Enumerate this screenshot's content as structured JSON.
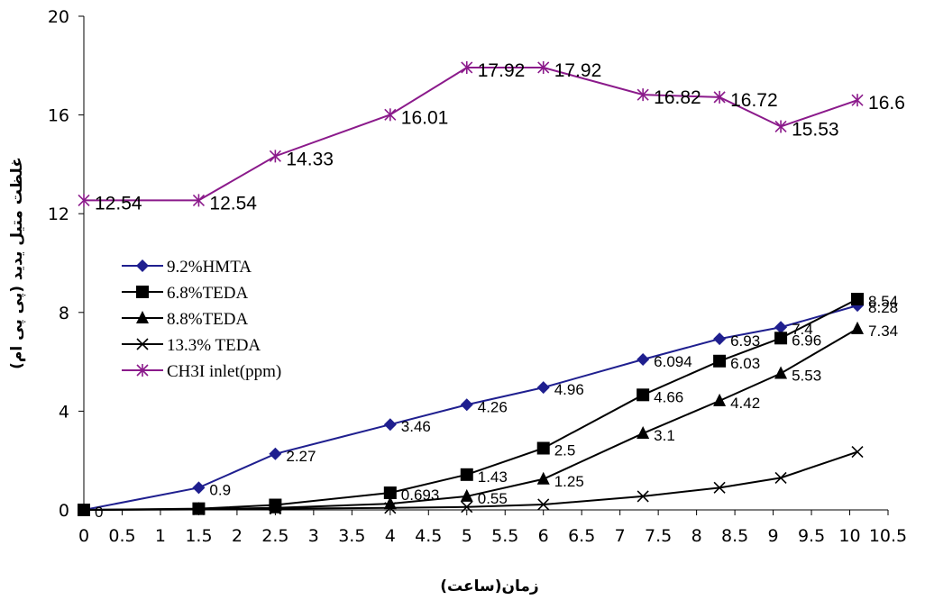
{
  "chart_data": {
    "type": "line",
    "title": "",
    "xlabel": "زمان(ساعت)",
    "ylabel": "غلظت متیل یدید (پی پی ام)",
    "xlim": [
      0,
      10.5
    ],
    "ylim": [
      0,
      20
    ],
    "x_ticks": [
      "0",
      "0.5",
      "1",
      "1.5",
      "2",
      "2.5",
      "3",
      "3.5",
      "4",
      "4.5",
      "5",
      "5.5",
      "6",
      "6.5",
      "7",
      "7.5",
      "8",
      "8.5",
      "9",
      "9.5",
      "10",
      "10.5"
    ],
    "y_ticks": [
      "0",
      "4",
      "8",
      "12",
      "16",
      "20"
    ],
    "grid": false,
    "legend_position": "left",
    "series": [
      {
        "name": "9.2%HMTA",
        "color": "#1f1f8f",
        "marker": "diamond",
        "x": [
          0,
          1.5,
          2.5,
          4,
          5,
          6,
          7.3,
          8.3,
          9.1,
          10.1
        ],
        "y": [
          0,
          0.9,
          2.27,
          3.46,
          4.26,
          4.96,
          6.094,
          6.93,
          7.4,
          8.28
        ],
        "labels": [
          "0",
          "0.9",
          "2.27",
          "3.46",
          "4.26",
          "4.96",
          "6.094",
          "6.93",
          "7.4",
          "8.28"
        ]
      },
      {
        "name": "6.8%TEDA",
        "color": "#000000",
        "marker": "square",
        "x": [
          0,
          1.5,
          2.5,
          4,
          5,
          6,
          7.3,
          8.3,
          9.1,
          10.1
        ],
        "y": [
          0,
          0.05,
          0.2,
          0.693,
          1.43,
          2.5,
          4.66,
          6.03,
          6.96,
          8.54
        ],
        "labels": [
          "",
          "",
          "",
          "0.693",
          "1.43",
          "2.5",
          "4.66",
          "6.03",
          "6.96",
          "8.54"
        ]
      },
      {
        "name": "8.8%TEDA",
        "color": "#000000",
        "marker": "triangle",
        "x": [
          0,
          1.5,
          2.5,
          4,
          5,
          6,
          7.3,
          8.3,
          9.1,
          10.1
        ],
        "y": [
          0,
          0.03,
          0.08,
          0.25,
          0.55,
          1.25,
          3.1,
          4.42,
          5.53,
          7.34
        ],
        "labels": [
          "",
          "",
          "",
          "",
          "0.55",
          "1.25",
          "3.1",
          "4.42",
          "5.53",
          "7.34"
        ]
      },
      {
        "name": "13.3% TEDA",
        "color": "#000000",
        "marker": "x",
        "x": [
          0,
          1.5,
          2.5,
          4,
          5,
          6,
          7.3,
          8.3,
          9.1,
          10.1
        ],
        "y": [
          0,
          0.02,
          0.05,
          0.08,
          0.12,
          0.22,
          0.55,
          0.9,
          1.3,
          2.35
        ],
        "labels": [
          "",
          "",
          "",
          "",
          "",
          "",
          "",
          "",
          "",
          ""
        ]
      },
      {
        "name": "CH3I inlet(ppm)",
        "color": "#8b1a8b",
        "marker": "asterisk",
        "x": [
          0,
          1.5,
          2.5,
          4,
          5,
          6,
          7.3,
          8.3,
          9.1,
          10.1
        ],
        "y": [
          12.54,
          12.54,
          14.33,
          16.01,
          17.92,
          17.92,
          16.82,
          16.72,
          15.53,
          16.6
        ],
        "labels": [
          "12.54",
          "12.54",
          "14.33",
          "16.01",
          "17.92",
          "17.92",
          "16.82",
          "16.72",
          "15.53",
          "16.6"
        ]
      }
    ]
  }
}
